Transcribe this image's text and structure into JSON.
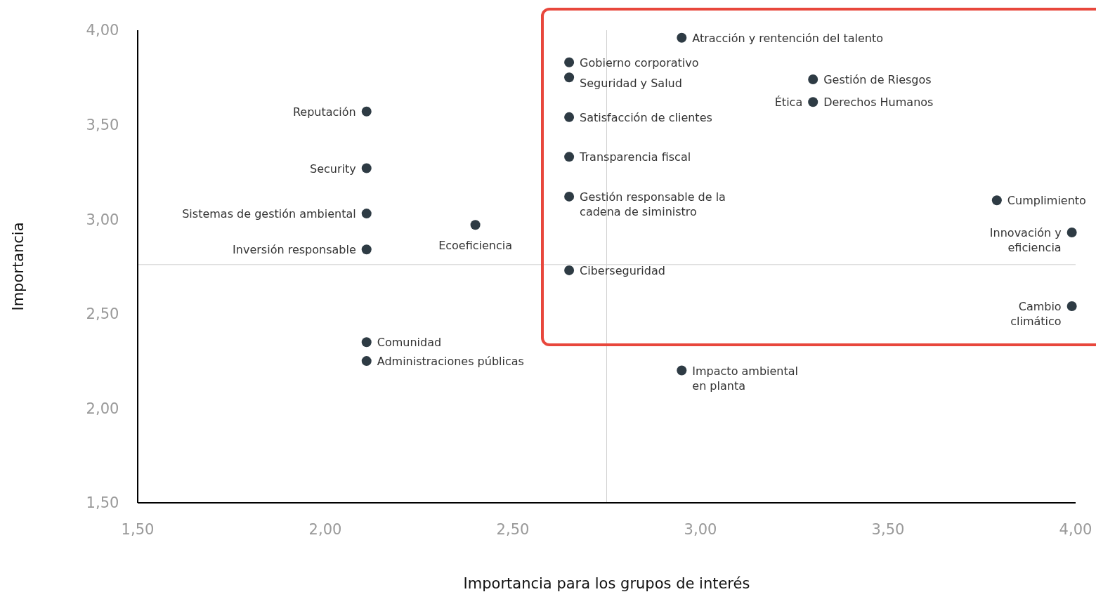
{
  "chart_data": {
    "type": "scatter",
    "xlabel": "Importancia para los grupos de interés",
    "ylabel": "Importancia",
    "xlim": [
      1.5,
      4
    ],
    "ylim": [
      1.5,
      4
    ],
    "xticks": [
      {
        "value": 1.5,
        "label": "1,50"
      },
      {
        "value": 2,
        "label": "2,00"
      },
      {
        "value": 2.5,
        "label": "2,50"
      },
      {
        "value": 3,
        "label": "3,00"
      },
      {
        "value": 3.5,
        "label": "3,50"
      },
      {
        "value": 4,
        "label": "4,00"
      }
    ],
    "yticks": [
      {
        "value": 1.5,
        "label": "1,50"
      },
      {
        "value": 2,
        "label": "2,00"
      },
      {
        "value": 2.5,
        "label": "2,50"
      },
      {
        "value": 3,
        "label": "3,00"
      },
      {
        "value": 3.5,
        "label": "3,50"
      },
      {
        "value": 4,
        "label": "4,00"
      }
    ],
    "grid": false,
    "marker": "circle",
    "series": [
      {
        "color": "#2e3b44",
        "x": [
          2.95,
          2.65,
          2.65,
          3.3,
          3.3,
          2.65,
          2.65,
          2.65,
          3.79,
          3.99,
          2.65,
          3.99,
          2.95,
          2.11,
          2.11,
          2.11,
          2.11,
          2.4,
          2.11,
          2.11
        ],
        "values": [
          3.96,
          3.83,
          3.75,
          3.74,
          3.62,
          3.54,
          3.33,
          3.12,
          3.1,
          2.93,
          2.73,
          2.54,
          2.2,
          3.57,
          3.27,
          3.03,
          2.84,
          2.97,
          2.35,
          2.25
        ]
      }
    ],
    "ref_lines": [
      {
        "axis": "x",
        "value": 2.75,
        "color": "#d0d0d0"
      },
      {
        "axis": "y",
        "value": 2.76,
        "color": "#d0d0d0"
      }
    ],
    "annotations": [
      {
        "text": "Atracción y rentención del talento",
        "x": 2.95,
        "y": 3.96
      },
      {
        "text": "Gobierno corporativo",
        "x": 2.65,
        "y": 3.83
      },
      {
        "text": "Seguridad y Salud",
        "x": 2.65,
        "y": 3.75
      },
      {
        "text": "Gestión de Riesgos",
        "x": 3.3,
        "y": 3.74
      },
      {
        "text": "Ética",
        "x": 3.3,
        "y": 3.62
      },
      {
        "text": "Derechos Humanos",
        "x": 3.3,
        "y": 3.62
      },
      {
        "text": "Satisfacción de clientes",
        "x": 2.65,
        "y": 3.54
      },
      {
        "text": "Transparencia fiscal",
        "x": 2.65,
        "y": 3.33
      },
      {
        "text": "Gestión responsable de la cadena de siministro",
        "x": 2.65,
        "y": 3.12
      },
      {
        "text": "Cumplimiento",
        "x": 3.79,
        "y": 3.1
      },
      {
        "text": "Innovación y eficiencia",
        "x": 3.99,
        "y": 2.93
      },
      {
        "text": "Ciberseguridad",
        "x": 2.65,
        "y": 2.73
      },
      {
        "text": "Cambio climático",
        "x": 3.99,
        "y": 2.54
      },
      {
        "text": "Impacto ambiental en planta",
        "x": 2.95,
        "y": 2.2
      },
      {
        "text": "Reputación",
        "x": 2.11,
        "y": 3.57
      },
      {
        "text": "Security",
        "x": 2.11,
        "y": 3.27
      },
      {
        "text": "Sistemas de gestión ambiental",
        "x": 2.11,
        "y": 3.03
      },
      {
        "text": "Inversión responsable",
        "x": 2.11,
        "y": 2.84
      },
      {
        "text": "Ecoeficiencia",
        "x": 2.4,
        "y": 2.97
      },
      {
        "text": "Comunidad",
        "x": 2.11,
        "y": 2.35
      },
      {
        "text": "Administraciones públicas",
        "x": 2.11,
        "y": 2.25
      }
    ]
  }
}
